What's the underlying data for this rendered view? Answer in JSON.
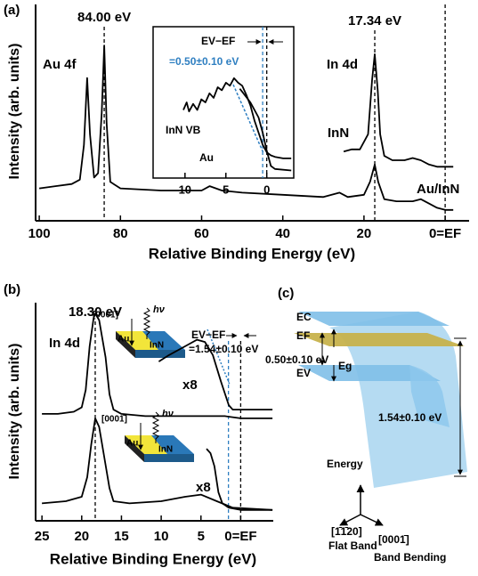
{
  "panel_labels": [
    "(a)",
    "(b)",
    "(c)"
  ],
  "chart_data": [
    {
      "type": "line",
      "xlabel": "Relative Binding Energy (eV)",
      "ylabel": "Intensity (arb. units)",
      "xlim": [
        100.9,
        -5.9
      ],
      "ylim": [
        0,
        100
      ],
      "xticks": [
        100,
        80,
        60,
        40,
        20,
        {
          "value": 0,
          "label": "0=EF"
        }
      ],
      "series": [
        {
          "name": "Au/InN",
          "color": "#000000",
          "x": [
            100,
            96,
            92,
            90,
            89,
            88.2,
            87.5,
            86.5,
            85.5,
            84.6,
            84,
            83.4,
            82.5,
            80,
            70,
            60,
            58,
            55,
            50,
            40,
            30,
            26,
            24,
            20,
            18.5,
            17.34,
            16.5,
            15,
            12,
            8,
            6,
            4,
            2,
            0,
            -2
          ],
          "values": [
            15,
            16,
            17,
            19,
            35,
            66,
            40,
            20,
            22,
            50,
            81,
            45,
            18,
            15,
            14,
            14,
            16,
            14,
            13,
            12,
            11,
            13,
            11,
            12,
            18,
            26,
            18,
            10,
            9,
            9,
            10,
            8,
            6,
            5,
            5
          ]
        },
        {
          "name": "InN",
          "color": "#000000",
          "x": [
            25,
            23,
            21,
            19,
            18,
            17.34,
            16.6,
            16,
            15,
            13,
            10,
            8,
            6,
            4,
            2,
            0,
            -2
          ],
          "values": [
            32,
            33,
            33,
            40,
            65,
            77,
            60,
            40,
            30,
            28,
            28,
            29,
            28,
            26,
            25,
            25,
            25
          ]
        }
      ],
      "peaks": [
        {
          "value": 84,
          "label": "84.00 eV"
        },
        {
          "value": 17.34,
          "label": "17.34 eV"
        }
      ],
      "vlines": [
        {
          "value": 0,
          "color": "#000000"
        }
      ],
      "annotations": [
        "Au 4f",
        "In 4d"
      ]
    },
    {
      "type": "line",
      "xlim": [
        13.9,
        -3.3
      ],
      "ylim": [
        0,
        100
      ],
      "xticks": [
        10,
        5,
        0
      ],
      "series": [
        {
          "name": "InN VB",
          "color": "#000000",
          "x": [
            10.2,
            9.8,
            9.5,
            9,
            8.5,
            8,
            7.5,
            7,
            6.5,
            6,
            5.5,
            5,
            4.5,
            4,
            3.5,
            3,
            2.5,
            2,
            1.5,
            1,
            0.5,
            0,
            -0.5,
            -1,
            -2,
            -3
          ],
          "values": [
            45,
            50,
            44,
            49,
            45,
            52,
            50,
            56,
            53,
            60,
            58,
            63,
            61,
            66,
            63,
            61,
            55,
            48,
            38,
            30,
            22,
            17,
            15,
            14,
            13,
            13
          ]
        },
        {
          "name": "Au",
          "color": "#000000",
          "x": [
            3.3,
            3,
            2,
            1,
            0.5,
            0,
            -0.5,
            -1,
            -3
          ],
          "values": [
            59,
            57,
            50,
            40,
            30,
            18,
            8,
            6,
            5
          ]
        }
      ],
      "vlines": [
        {
          "value": 0.5,
          "color": "#2f7fc1"
        },
        {
          "value": 0,
          "color": "#000000"
        }
      ],
      "annotations": [
        "EV−EF",
        "=0.50±0.10 eV"
      ]
    },
    {
      "type": "line",
      "xlabel": "Relative Binding Energy (eV)",
      "ylabel": "Intensity (arb. units)",
      "xlim": [
        25.8,
        -4.1
      ],
      "ylim": [
        0,
        100
      ],
      "xticks": [
        25,
        20,
        15,
        10,
        5,
        {
          "value": 0,
          "label": "0=EF"
        }
      ],
      "series": [
        {
          "color": "#000000",
          "x": [
            25,
            23,
            21,
            20,
            19.5,
            19,
            18.5,
            18.3,
            17.8,
            17,
            16.5,
            16,
            15,
            12,
            8,
            5,
            2,
            0,
            -4
          ],
          "values": [
            49,
            49,
            50,
            52,
            60,
            80,
            93,
            95,
            92,
            75,
            58,
            51,
            49,
            48,
            48,
            48,
            48,
            47,
            47
          ]
        },
        {
          "color": "#000000",
          "x": [
            10.3,
            9,
            7,
            5.5,
            4.5,
            3.5,
            2.5,
            1.5,
            1,
            0,
            -4
          ],
          "values": [
            73,
            76,
            80,
            83,
            82,
            76,
            64,
            53,
            51,
            51,
            51
          ]
        },
        {
          "color": "#000000",
          "x": [
            25,
            22,
            20,
            19.3,
            18.8,
            18.3,
            17.8,
            17.2,
            16.5,
            16,
            14,
            10,
            7,
            5,
            3,
            1,
            -4
          ],
          "values": [
            8,
            9,
            11,
            20,
            35,
            47,
            43,
            30,
            15,
            9,
            8,
            9,
            11,
            12,
            9,
            6,
            5
          ]
        },
        {
          "color": "#000000",
          "x": [
            4.3,
            3.8,
            3.3,
            2.8,
            2.3,
            1.5,
            0,
            -4
          ],
          "values": [
            33,
            31,
            25,
            13,
            8,
            6,
            5,
            5
          ]
        }
      ],
      "peaks": [
        {
          "value": 18.3,
          "label": "18.30 eV"
        }
      ],
      "vlines": [
        {
          "value": 1.54,
          "color": "#2f7fc1"
        },
        {
          "value": 0,
          "color": "#000000"
        }
      ],
      "annotations": [
        "In 4d",
        "EV−EF",
        "=1.54±0.10 eV",
        "x8",
        "x8"
      ]
    }
  ],
  "schematic": {
    "direction": "[0001̄]",
    "photon": "hν",
    "metal": "Au",
    "semiconductor": "InN"
  },
  "diagram": {
    "ec": "EC",
    "ef": "EF",
    "ev": "EV",
    "eg": "Eg",
    "gap": "0.50±0.10 eV",
    "bending": "1.54±0.10 eV",
    "energy": "Energy",
    "axis1": "[1̄1̄20]",
    "axis1_name": "Flat Band",
    "axis2": "[0001̄]",
    "axis2_name": "Band Bending"
  }
}
